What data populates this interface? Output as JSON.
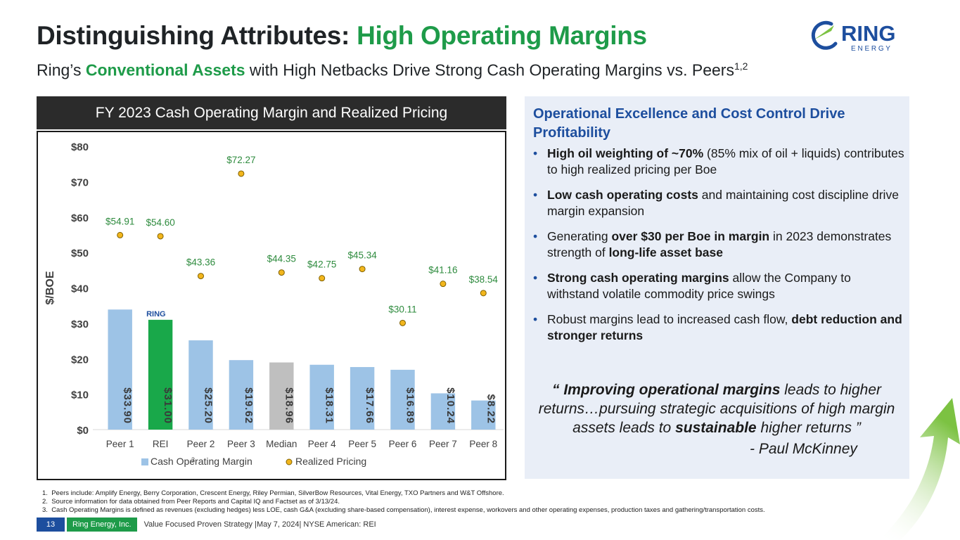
{
  "header": {
    "title_main": "Distinguishing Attributes: ",
    "title_highlight": "High Operating Margins",
    "subtitle_pre": "Ring’s ",
    "subtitle_highlight": "Conventional Assets",
    "subtitle_post": " with High Netbacks Drive Strong Cash Operating Margins vs. Peers",
    "subtitle_sup": "1,2"
  },
  "logo": {
    "word": "RING",
    "sub": "E N E R G Y"
  },
  "chart_panel": {
    "header": "FY 2023 Cash Operating Margin and Realized Pricing",
    "marker_note": "3"
  },
  "chart_data": {
    "type": "bar",
    "categories": [
      "Peer 1",
      "REI",
      "Peer 2",
      "Peer 3",
      "Median",
      "Peer 4",
      "Peer 5",
      "Peer 6",
      "Peer 7",
      "Peer 8"
    ],
    "series": [
      {
        "name": "Cash Operating Margin",
        "type": "bar",
        "values": [
          33.9,
          31.0,
          25.2,
          19.62,
          18.96,
          18.31,
          17.66,
          16.89,
          10.24,
          8.22
        ],
        "labels": [
          "$33.90",
          "$31.00",
          "$25.20",
          "$19.62",
          "$18.96",
          "$18.31",
          "$17.66",
          "$16.89",
          "$10.24",
          "$8.22"
        ]
      },
      {
        "name": "Realized Pricing",
        "type": "scatter",
        "values": [
          54.91,
          54.6,
          43.36,
          72.27,
          44.35,
          42.75,
          45.34,
          30.11,
          41.16,
          38.54
        ],
        "labels": [
          "$54.91",
          "$54.60",
          "$43.36",
          "$72.27",
          "$44.35",
          "$42.75",
          "$45.34",
          "$30.11",
          "$41.16",
          "$38.54"
        ]
      }
    ],
    "ylabel": "$/BOE",
    "ylim": [
      0,
      80
    ],
    "yticks": [
      "$0",
      "$10",
      "$20",
      "$30",
      "$40",
      "$50",
      "$60",
      "$70",
      "$80"
    ],
    "grid": false,
    "legend": "bottom",
    "colors": {
      "bar": "#9dc3e6",
      "bar_rei": "#19a84a",
      "bar_median": "#bfbfbf",
      "point": "#f2b61d",
      "point_stroke": "#7f6000",
      "point_label": "#2e8b3e"
    }
  },
  "right_panel": {
    "title": "Operational Excellence and Cost Control Drive Profitability",
    "bullets": [
      {
        "bold": "High oil weighting of ~70%",
        "text": "  (85% mix of oil + liquids) contributes to high realized pricing per Boe"
      },
      {
        "bold": "Low cash operating costs",
        "text": " and maintaining cost discipline drive margin expansion"
      },
      {
        "pre": "Generating ",
        "bold": "over $30 per Boe in margin",
        "text": " in 2023 demonstrates strength of ",
        "bold2": "long-life asset base"
      },
      {
        "bold": "Strong cash operating margins",
        "text": " allow the Company to withstand volatile commodity price swings"
      },
      {
        "pre": "Robust margins lead to increased cash flow, ",
        "bold": "debt reduction and stronger returns"
      }
    ],
    "quote": {
      "open": "“ ",
      "b1": "Improving operational margins",
      "t1": " leads to higher returns…pursuing strategic acquisitions of high margin assets leads to ",
      "b2": "sustainable",
      "t2": " higher returns ”",
      "author": "- Paul McKinney"
    }
  },
  "footnotes": [
    "1.  Peers include: Amplify Energy, Berry Corporation, Crescent Energy, Riley Permian, SilverBow Resources, Vital Energy, TXO Partners and W&T Offshore.",
    "2.  Source information for data obtained from Peer Reports and Capital IQ and Factset as of 3/13/24.",
    "3.  Cash Operating Margins is defined as revenues (excluding hedges) less LOE, cash G&A (excluding share-based compensation), interest expense, workovers and other operating expenses, production taxes and gathering/transportation costs."
  ],
  "footer": {
    "page": "13",
    "company": "Ring Energy, Inc.",
    "tagline": "Value Focused Proven Strategy  |May 7, 2024|  NYSE American: REI"
  }
}
